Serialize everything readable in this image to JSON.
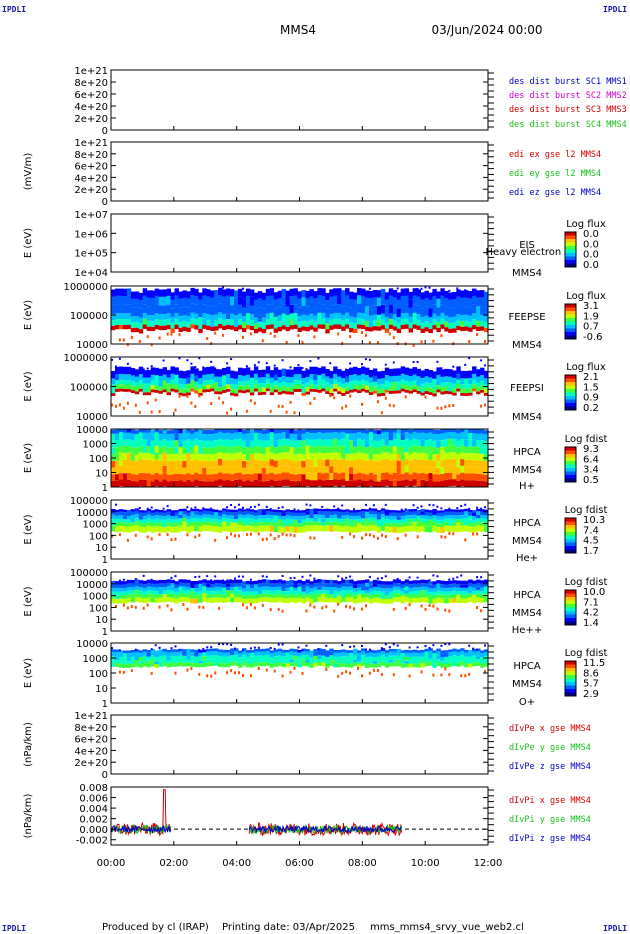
{
  "corner_labels": [
    "IPDLI",
    "IPDLI",
    "IPDLI",
    "IPDLI"
  ],
  "header": {
    "spacecraft": "MMS4",
    "date": "03/Jun/2024 00:00"
  },
  "footer": {
    "produced": "Produced by cl (IRAP)",
    "printing": "Printing date: 03/Apr/2025",
    "file": "mms_mms4_srvy_vue_web2.cl"
  },
  "x_axis": {
    "ticks": [
      "00:00",
      "02:00",
      "04:00",
      "06:00",
      "08:00",
      "10:00",
      "12:00"
    ],
    "range_hours": [
      0,
      12
    ]
  },
  "colors": {
    "blue": "#0000c8",
    "magenta": "#d000d0",
    "red": "#d40000",
    "green": "#18c018",
    "spec": [
      "#00007f",
      "#0000ff",
      "#0060ff",
      "#00c0ff",
      "#00ffc0",
      "#40ff40",
      "#c0ff00",
      "#ffc000",
      "#ff5000",
      "#d00000"
    ]
  },
  "chart_data": [
    {
      "type": "line",
      "id": "p1",
      "ylabel": "",
      "yticks": [
        "1e+21",
        "8e+20",
        "6e+20",
        "4e+20",
        "2e+20",
        "0"
      ],
      "ylim": [
        0,
        1e+21
      ],
      "legend": [
        {
          "text": "des dist burst SC1 MMS1",
          "color": "blue"
        },
        {
          "text": "des dist burst SC2 MMS2",
          "color": "magenta"
        },
        {
          "text": "des dist burst SC3 MMS3",
          "color": "red"
        },
        {
          "text": "des dist burst SC4 MMS4",
          "color": "green"
        }
      ],
      "series": []
    },
    {
      "type": "line",
      "id": "p2",
      "ylabel": "(mV/m)",
      "yticks": [
        "1e+21",
        "8e+20",
        "6e+20",
        "4e+20",
        "2e+20",
        "0"
      ],
      "ylim": [
        0,
        1e+21
      ],
      "legend": [
        {
          "text": "edi ex gse l2 MMS4",
          "color": "red"
        },
        {
          "text": "edi ey gse l2 MMS4",
          "color": "green"
        },
        {
          "text": "edi ez gse l2 MMS4",
          "color": "blue"
        }
      ],
      "series": []
    },
    {
      "type": "heatmap",
      "id": "p3",
      "ylabel": "E (eV)",
      "yticks": [
        "1e+07",
        "1e+06",
        "1e+05",
        "1e+04"
      ],
      "ylim": [
        10000,
        10000000
      ],
      "side": [
        "EIS",
        "MMS4"
      ],
      "overlay_text": "Heavy electron to",
      "colorbar": {
        "title": "Log flux",
        "labels": [
          "0.0",
          "0.0",
          "0.0",
          "0.0"
        ]
      },
      "spectrogram": null
    },
    {
      "type": "heatmap",
      "id": "p4",
      "ylabel": "E (eV)",
      "yticks": [
        "1000000",
        "100000",
        "10000"
      ],
      "ylim": [
        10000,
        1000000
      ],
      "side": [
        "FEEPSE",
        "MMS4"
      ],
      "colorbar": {
        "title": "Log flux",
        "labels": [
          "3.1",
          "1.9",
          "0.7",
          "-0.6"
        ]
      },
      "spectrogram": {
        "t_start_h": 0,
        "t_end_h": 12,
        "levels_log10E": [
          4.45,
          4.6,
          4.8,
          5.0,
          5.3,
          5.6,
          5.85
        ],
        "bands": [
          9,
          4,
          3,
          2,
          2,
          1,
          1
        ]
      }
    },
    {
      "type": "heatmap",
      "id": "p5",
      "ylabel": "E (eV)",
      "yticks": [
        "1000000",
        "100000",
        "10000"
      ],
      "ylim": [
        10000,
        1000000
      ],
      "side": [
        "FEEPSI",
        "MMS4"
      ],
      "colorbar": {
        "title": "Log flux",
        "labels": [
          "2.1",
          "1.5",
          "0.9",
          "0.2"
        ]
      },
      "spectrogram": {
        "t_start_h": 0,
        "t_end_h": 12,
        "levels_log10E": [
          4.75,
          4.85,
          5.0,
          5.15,
          5.35,
          5.6
        ],
        "bands": [
          9,
          5,
          4,
          3,
          1,
          1
        ]
      }
    },
    {
      "type": "heatmap",
      "id": "p6",
      "ylabel": "E (eV)",
      "yticks": [
        "10000",
        "1000",
        "100",
        "10",
        "1"
      ],
      "ylim": [
        1,
        20000
      ],
      "side": [
        "HPCA",
        "MMS4",
        "H+"
      ],
      "colorbar": {
        "title": "Log fdist",
        "labels": [
          "9.3",
          "6.4",
          "3.4",
          "0.5"
        ]
      },
      "spectrogram": {
        "t_start_h": 0,
        "t_end_h": 12,
        "levels_log10E": [
          0.0,
          0.5,
          1.0,
          1.5,
          2.0,
          2.5,
          3.0,
          3.5,
          4.0,
          4.3
        ],
        "bands": [
          9,
          8,
          7,
          7,
          6,
          5,
          4,
          3,
          2,
          1
        ]
      }
    },
    {
      "type": "heatmap",
      "id": "p7",
      "ylabel": "E (eV)",
      "yticks": [
        "100000",
        "10000",
        "1000",
        "100",
        "10",
        "1"
      ],
      "ylim": [
        1,
        100000
      ],
      "side": [
        "HPCA",
        "MMS4",
        "He+"
      ],
      "colorbar": {
        "title": "Log fdist",
        "labels": [
          "10.3",
          "7.4",
          "4.5",
          "1.7"
        ]
      },
      "spectrogram": {
        "t_start_h": 0,
        "t_end_h": 12,
        "levels_log10E": [
          2.3,
          2.8,
          3.1,
          3.4,
          3.7,
          4.0,
          4.2
        ],
        "bands": [
          6,
          5,
          4,
          3,
          2,
          1,
          1
        ]
      }
    },
    {
      "type": "heatmap",
      "id": "p8",
      "ylabel": "E (eV)",
      "yticks": [
        "100000",
        "10000",
        "1000",
        "100",
        "10",
        "1"
      ],
      "ylim": [
        1,
        100000
      ],
      "side": [
        "HPCA",
        "MMS4",
        "He++"
      ],
      "colorbar": {
        "title": "Log fdist",
        "labels": [
          "10.0",
          "7.1",
          "4.2",
          "1.4"
        ]
      },
      "spectrogram": {
        "t_start_h": 0,
        "t_end_h": 12,
        "levels_log10E": [
          2.4,
          2.8,
          3.1,
          3.4,
          3.7,
          4.0,
          4.3
        ],
        "bands": [
          6,
          5,
          4,
          3,
          2,
          1,
          1
        ]
      }
    },
    {
      "type": "heatmap",
      "id": "p9",
      "ylabel": "E (eV)",
      "yticks": [
        "10000",
        "1000",
        "100",
        "10",
        "1"
      ],
      "ylim": [
        1,
        30000
      ],
      "side": [
        "HPCA",
        "MMS4",
        "O+"
      ],
      "colorbar": {
        "title": "Log fdist",
        "labels": [
          "11.5",
          "8.6",
          "5.7",
          "2.9"
        ]
      },
      "spectrogram": {
        "t_start_h": 0,
        "t_end_h": 12,
        "levels_log10E": [
          2.7,
          3.0,
          3.2,
          3.5,
          3.8,
          4.0
        ],
        "bands": [
          5,
          4,
          4,
          3,
          2,
          1
        ]
      }
    },
    {
      "type": "line",
      "id": "p10",
      "ylabel": "(nPa/km)",
      "yticks": [
        "1e+21",
        "8e+20",
        "6e+20",
        "4e+20",
        "2e+20",
        "0"
      ],
      "ylim": [
        0,
        1e+21
      ],
      "legend": [
        {
          "text": "dIvPe x gse MMS4",
          "color": "red"
        },
        {
          "text": "dIvPe y gse MMS4",
          "color": "green"
        },
        {
          "text": "dIvPe z gse MMS4",
          "color": "blue"
        }
      ],
      "series": []
    },
    {
      "type": "line",
      "id": "p11",
      "ylabel": "(nPa/km)",
      "yticks": [
        "0.008",
        "0.006",
        "0.004",
        "0.002",
        "0.000",
        "-0.002"
      ],
      "ylim": [
        -0.003,
        0.008
      ],
      "legend": [
        {
          "text": "dIvPi x gse MMS4",
          "color": "red"
        },
        {
          "text": "dIvPi y gse MMS4",
          "color": "green"
        },
        {
          "text": "dIvPi z gse MMS4",
          "color": "blue"
        }
      ],
      "series": [
        {
          "color": "red",
          "intervals": [
            [
              0.0,
              1.9
            ],
            [
              4.4,
              9.25
            ]
          ],
          "amplitude": 0.0012,
          "spike": {
            "t": 1.7,
            "v": 0.0075
          }
        },
        {
          "color": "green",
          "intervals": [
            [
              0.0,
              1.9
            ],
            [
              4.4,
              9.25
            ]
          ],
          "amplitude": 0.0008
        },
        {
          "color": "blue",
          "intervals": [
            [
              0.0,
              1.9
            ],
            [
              4.4,
              9.25
            ]
          ],
          "amplitude": 0.0006
        }
      ]
    }
  ]
}
